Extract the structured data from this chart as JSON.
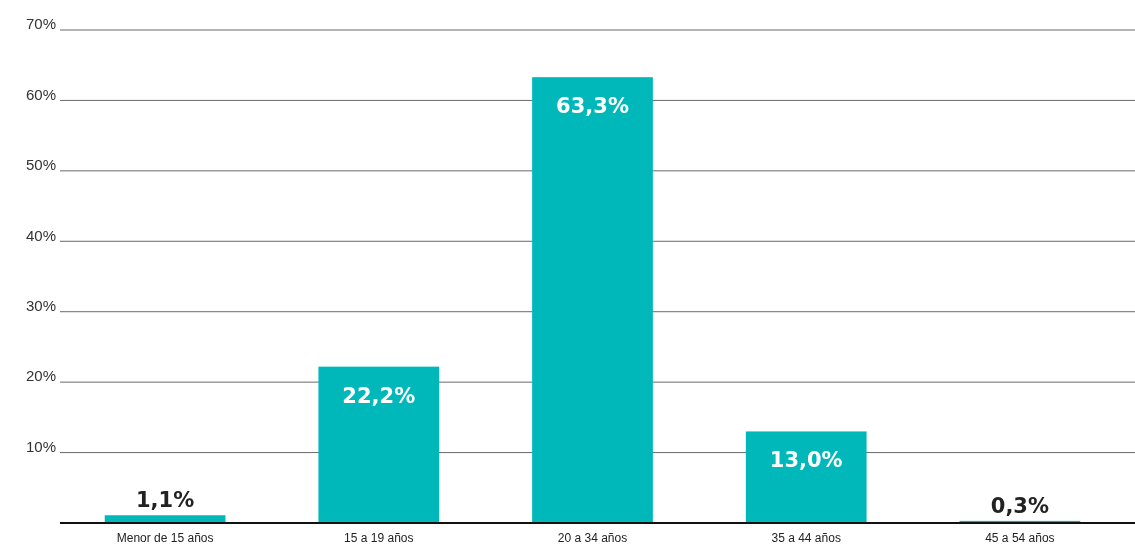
{
  "chart_data": {
    "type": "bar",
    "categories": [
      "Menor de 15 años",
      "15 a 19 años",
      "20 a 34 años",
      "35 a 44 años",
      "45 a 54 años"
    ],
    "values": [
      1.1,
      22.2,
      63.3,
      13.0,
      0.3
    ],
    "value_labels": [
      "1,1%",
      "22,2%",
      "63,3%",
      "13,0%",
      "0,3%"
    ],
    "color": "#00b8ba",
    "ylim": [
      0,
      70
    ],
    "yticks": [
      {
        "value": 0,
        "label": null
      },
      {
        "value": 10,
        "label": "10%"
      },
      {
        "value": 20,
        "label": "20%"
      },
      {
        "value": 30,
        "label": "30%"
      },
      {
        "value": 40,
        "label": "40%"
      },
      {
        "value": 50,
        "label": "50%"
      },
      {
        "value": 60,
        "label": "60%"
      },
      {
        "value": 70,
        "label": "70%"
      }
    ],
    "grid": true
  }
}
